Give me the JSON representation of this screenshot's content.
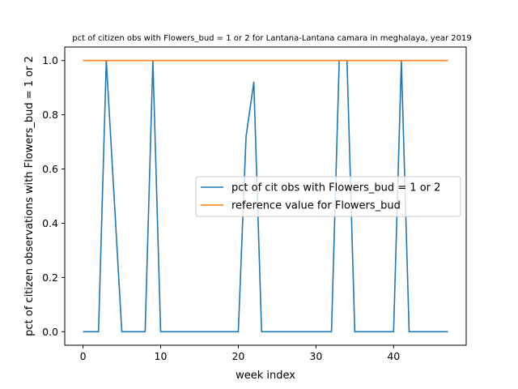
{
  "chart_data": {
    "type": "line",
    "title": "pct of citizen obs with Flowers_bud = 1 or 2 for Lantana-Lantana camara in meghalaya, year 2019",
    "xlabel": "week index",
    "ylabel": "pct of citizen observations with Flowers_bud = 1 or 2",
    "xlim": [
      -2.35,
      49.35
    ],
    "ylim": [
      -0.05,
      1.05
    ],
    "xticks": [
      0,
      10,
      20,
      30,
      40
    ],
    "yticks": [
      0.0,
      0.2,
      0.4,
      0.6,
      0.8,
      1.0
    ],
    "ytick_labels": [
      "0.0",
      "0.2",
      "0.4",
      "0.6",
      "0.8",
      "1.0"
    ],
    "grid": false,
    "legend_position": "center-right",
    "series": [
      {
        "name": "pct of cit obs with Flowers_bud = 1 or 2",
        "color": "#1f77b4",
        "x": [
          0,
          1,
          2,
          3,
          4,
          5,
          6,
          7,
          8,
          9,
          10,
          11,
          12,
          13,
          14,
          15,
          16,
          17,
          18,
          19,
          20,
          21,
          22,
          23,
          24,
          25,
          26,
          27,
          28,
          29,
          30,
          31,
          32,
          33,
          34,
          35,
          36,
          37,
          38,
          39,
          40,
          41,
          42,
          43,
          44,
          45,
          46,
          47
        ],
        "y": [
          0,
          0,
          0,
          1,
          0.5,
          0,
          0,
          0,
          0,
          1,
          0,
          0,
          0,
          0,
          0,
          0,
          0,
          0,
          0,
          0,
          0,
          0.72,
          0.92,
          0,
          0,
          0,
          0,
          0,
          0,
          0,
          0,
          0,
          0,
          1,
          1,
          0,
          0,
          0,
          0,
          0,
          0,
          1,
          0,
          0,
          0,
          0,
          0,
          0
        ]
      },
      {
        "name": "reference value for Flowers_bud",
        "color": "#ff7f0e",
        "x": [
          0,
          47
        ],
        "y": [
          1,
          1
        ]
      }
    ]
  }
}
